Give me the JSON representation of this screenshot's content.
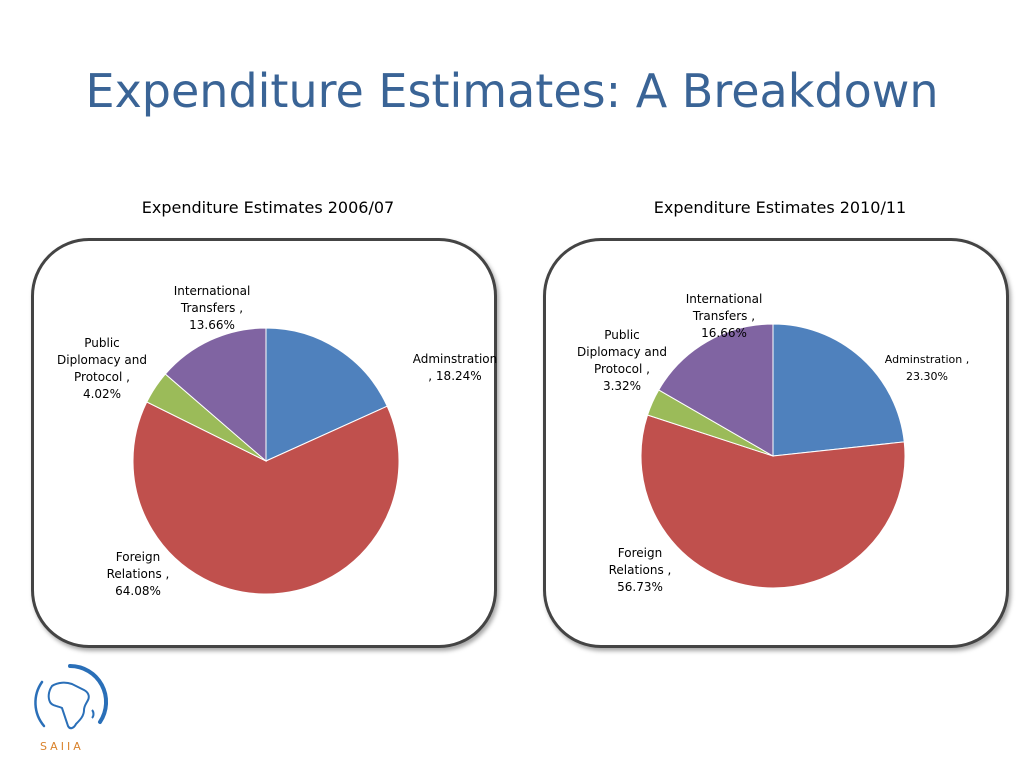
{
  "slide": {
    "title": "Expenditure Estimates: A Breakdown",
    "logo_text": "SAIIA"
  },
  "colors": {
    "title": "#3a6496",
    "administration": "#4f81bd",
    "foreign_relations": "#c0504d",
    "public_diplomacy": "#9bbb59",
    "international_transfers": "#8064a2",
    "logo_blue": "#2a6fb8",
    "logo_orange": "#d9822b"
  },
  "chart_data": [
    {
      "type": "pie",
      "title": "Expenditure Estimates 2006/07",
      "slices": [
        {
          "key": "administration",
          "label": "Adminstration , 18.24%",
          "value": 18.24,
          "color": "#4f81bd"
        },
        {
          "key": "foreign_relations",
          "label": "Foreign Relations , 64.08%",
          "value": 64.08,
          "color": "#c0504d"
        },
        {
          "key": "public_diplomacy",
          "label": "Public Diplomacy and Protocol , 4.02%",
          "value": 4.02,
          "color": "#9bbb59"
        },
        {
          "key": "international_transfers",
          "label": "International Transfers , 13.66%",
          "value": 13.66,
          "color": "#8064a2"
        }
      ],
      "start_angle": "12 o'clock",
      "direction": "clockwise",
      "legend": "none"
    },
    {
      "type": "pie",
      "title": "Expenditure Estimates 2010/11",
      "slices": [
        {
          "key": "administration",
          "label": "Adminstration , 23.30%",
          "value": 23.3,
          "color": "#4f81bd"
        },
        {
          "key": "foreign_relations",
          "label": "Foreign Relations , 56.73%",
          "value": 56.73,
          "color": "#c0504d"
        },
        {
          "key": "public_diplomacy",
          "label": "Public Diplomacy and Protocol , 3.32%",
          "value": 3.32,
          "color": "#9bbb59"
        },
        {
          "key": "international_transfers",
          "label": "International Transfers , 16.66%",
          "value": 16.66,
          "color": "#8064a2"
        }
      ],
      "start_angle": "12 o'clock",
      "direction": "clockwise",
      "legend": "none"
    }
  ]
}
